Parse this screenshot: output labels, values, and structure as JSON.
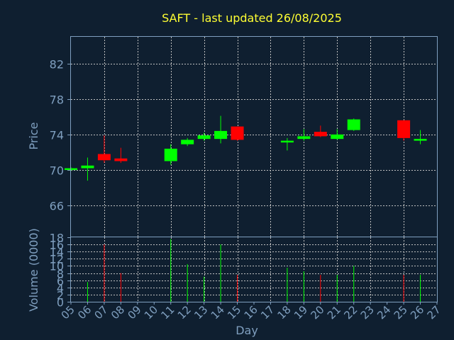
{
  "chart_data": {
    "type": "candlestick",
    "title": "SAFT - last updated 26/08/2025",
    "colors": {
      "background": "#0f1f30",
      "frame": "#7f9fbf",
      "grid": "#c0c0c0",
      "up": "#00ff00",
      "down": "#ff0000",
      "text": "#7f9fbf",
      "title": "#ffff33"
    },
    "price_panel": {
      "ylabel": "Price",
      "ylim": [
        62.5,
        85
      ],
      "yticks": [
        "66",
        "70",
        "74",
        "78",
        "82"
      ],
      "ytick_values": [
        66,
        70,
        74,
        78,
        82
      ]
    },
    "volume_panel": {
      "ylabel": "Volume (0000)",
      "ylim": [
        0,
        18
      ],
      "yticks": [
        "0",
        "2",
        "4",
        "6",
        "8",
        "10",
        "12",
        "14",
        "16",
        "18"
      ],
      "ytick_values": [
        0,
        2,
        4,
        6,
        8,
        10,
        12,
        14,
        16,
        18
      ]
    },
    "xlabel": "Day",
    "x_range": [
      0,
      22
    ],
    "xticks": [
      "05",
      "06",
      "07",
      "08",
      "09",
      "10",
      "11",
      "12",
      "13",
      "14",
      "15",
      "16",
      "17",
      "18",
      "19",
      "20",
      "21",
      "22",
      "23",
      "24",
      "25",
      "26",
      "27"
    ],
    "candles": [
      {
        "day": "05",
        "open": 70.0,
        "close": 70.2,
        "high": 70.3,
        "low": 69.9,
        "volume": 0
      },
      {
        "day": "06",
        "open": 70.2,
        "close": 70.5,
        "high": 71.4,
        "low": 68.8,
        "volume": 5.5
      },
      {
        "day": "07",
        "open": 71.8,
        "close": 71.1,
        "high": 73.9,
        "low": 70.8,
        "volume": 16
      },
      {
        "day": "08",
        "open": 71.3,
        "close": 71.0,
        "high": 72.5,
        "low": 70.8,
        "volume": 8
      },
      {
        "day": "11",
        "open": 71.0,
        "close": 72.4,
        "high": 72.9,
        "low": 70.6,
        "volume": 17.5
      },
      {
        "day": "12",
        "open": 72.9,
        "close": 73.4,
        "high": 73.6,
        "low": 72.7,
        "volume": 10.5
      },
      {
        "day": "13",
        "open": 73.5,
        "close": 73.9,
        "high": 74.2,
        "low": 73.3,
        "volume": 7
      },
      {
        "day": "14",
        "open": 73.5,
        "close": 74.4,
        "high": 76.1,
        "low": 73.0,
        "volume": 16
      },
      {
        "day": "15",
        "open": 74.9,
        "close": 73.4,
        "high": 74.9,
        "low": 73.3,
        "volume": 7.5
      },
      {
        "day": "18",
        "open": 73.1,
        "close": 73.3,
        "high": 73.6,
        "low": 72.2,
        "volume": 9.5
      },
      {
        "day": "19",
        "open": 73.5,
        "close": 73.8,
        "high": 74.6,
        "low": 73.3,
        "volume": 8.5
      },
      {
        "day": "20",
        "open": 74.3,
        "close": 73.8,
        "high": 75.0,
        "low": 73.7,
        "volume": 7.5
      },
      {
        "day": "21",
        "open": 73.5,
        "close": 74.0,
        "high": 74.6,
        "low": 73.4,
        "volume": 7.5
      },
      {
        "day": "22",
        "open": 74.5,
        "close": 75.7,
        "high": 75.8,
        "low": 74.4,
        "volume": 10
      },
      {
        "day": "25",
        "open": 75.6,
        "close": 73.6,
        "high": 75.6,
        "low": 73.3,
        "volume": 7.5
      },
      {
        "day": "26",
        "open": 73.3,
        "close": 73.5,
        "high": 74.5,
        "low": 72.9,
        "volume": 7.5
      }
    ]
  }
}
